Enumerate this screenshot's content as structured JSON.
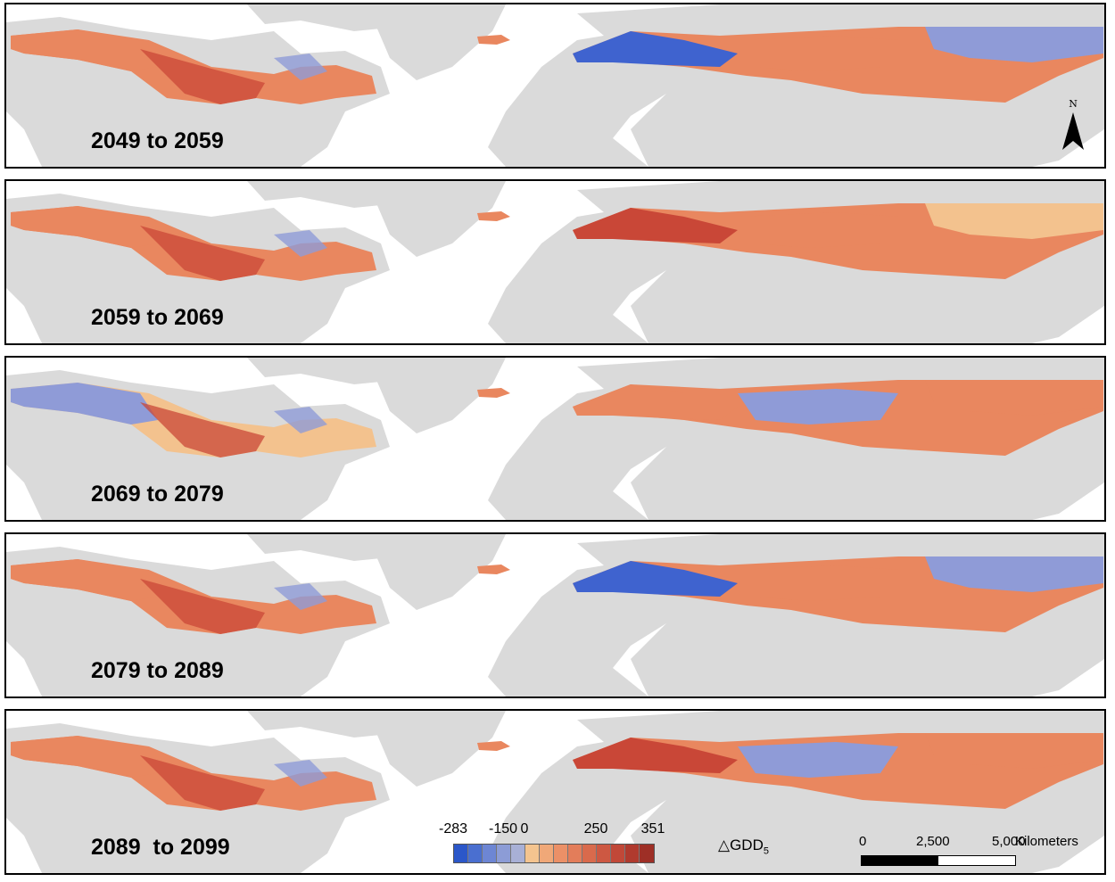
{
  "panels": [
    {
      "label": "2049 to 2059",
      "na_tone": "warm",
      "eu_tone": "blue-west"
    },
    {
      "label": "2059 to 2069",
      "na_tone": "warm",
      "eu_tone": "hot-west"
    },
    {
      "label": "2069 to 2079",
      "na_tone": "blue-west",
      "eu_tone": "blue-center"
    },
    {
      "label": "2079 to 2089",
      "na_tone": "warm",
      "eu_tone": "blue-west"
    },
    {
      "label": "2089  to 2099",
      "na_tone": "warm",
      "eu_tone": "mixed"
    }
  ],
  "north_arrow": {
    "letter": "N"
  },
  "legend": {
    "tick_labels": [
      "-283",
      "-150",
      "0",
      "250",
      "351"
    ],
    "tick_values": [
      -283,
      -150,
      0,
      250,
      351
    ],
    "colors": [
      "#2b57c9",
      "#4a6fd0",
      "#6d86d4",
      "#8c9cd6",
      "#a8b0d6",
      "#f4c48f",
      "#f0a878",
      "#eb9067",
      "#e37d5a",
      "#d96a4c",
      "#cd5842",
      "#c14838",
      "#b03a2e",
      "#9e2f26"
    ]
  },
  "variable_label": "GDD",
  "variable_subscript": "5",
  "variable_symbol": "△",
  "scale": {
    "labels": [
      "0",
      "2,500",
      "5,000"
    ],
    "unit": "Kilometers"
  },
  "colors": {
    "land": "#dadada",
    "warm": "#e9875f",
    "hot": "#c94737",
    "light": "#f3c28e",
    "cool": "#8f9bd7",
    "blue": "#3f63cf"
  }
}
